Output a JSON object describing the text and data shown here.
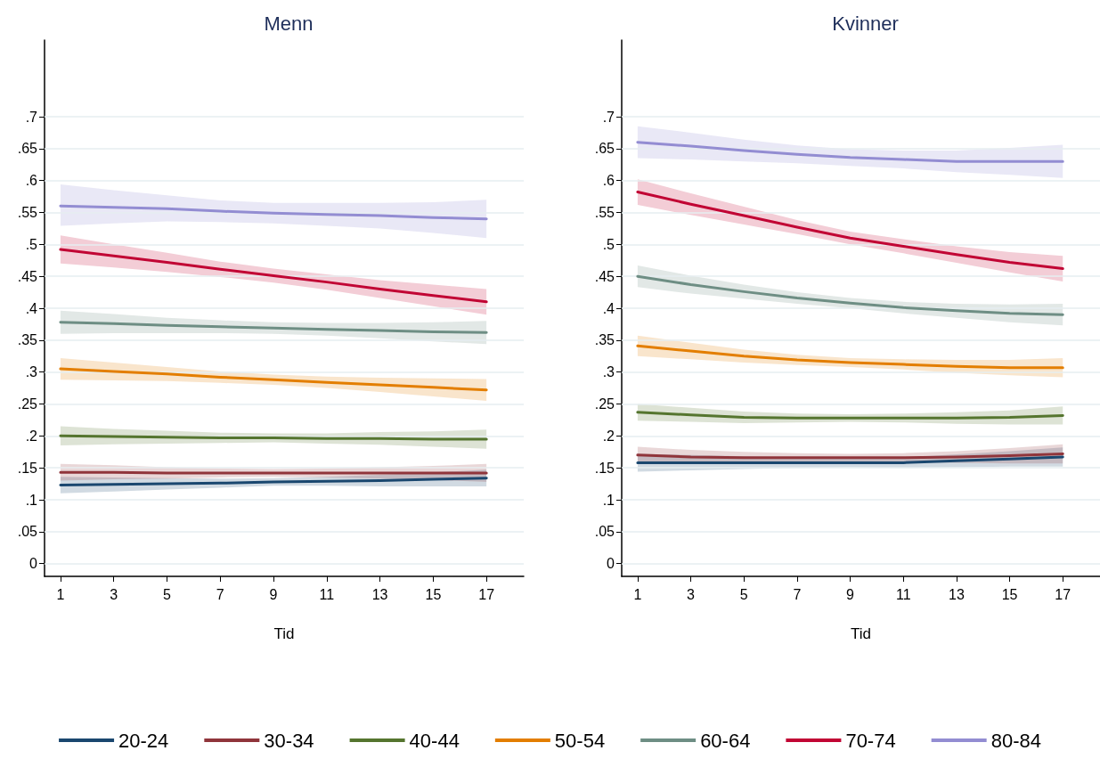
{
  "chart_data": [
    {
      "type": "line",
      "title": "Menn",
      "xlabel": "Tid",
      "x": [
        1,
        3,
        5,
        7,
        9,
        11,
        13,
        15,
        17
      ],
      "xlim": [
        0.4,
        18.4
      ],
      "xticks": [
        1,
        3,
        5,
        7,
        9,
        11,
        13,
        15,
        17
      ],
      "ylim": [
        -0.02,
        0.82
      ],
      "yticks": [
        0,
        {
          "value": 0.05,
          "label": ".05"
        },
        {
          "value": 0.1,
          "label": ".1"
        },
        {
          "value": 0.15,
          "label": ".15"
        },
        {
          "value": 0.2,
          "label": ".2"
        },
        {
          "value": 0.25,
          "label": ".25"
        },
        {
          "value": 0.3,
          "label": ".3"
        },
        {
          "value": 0.35,
          "label": ".35"
        },
        {
          "value": 0.4,
          "label": ".4"
        },
        {
          "value": 0.45,
          "label": ".45"
        },
        {
          "value": 0.5,
          "label": ".5"
        },
        {
          "value": 0.55,
          "label": ".55"
        },
        {
          "value": 0.6,
          "label": ".6"
        },
        {
          "value": 0.65,
          "label": ".65"
        },
        {
          "value": 0.7,
          "label": ".7"
        }
      ],
      "grid": "y",
      "legend": "bottom",
      "marker": "none",
      "line_style": "solid",
      "series": [
        {
          "name": "20-24",
          "color": "#1a476f",
          "values": [
            0.123,
            0.124,
            0.125,
            0.126,
            0.128,
            0.129,
            0.13,
            0.132,
            0.134
          ],
          "lower": [
            0.11,
            0.113,
            0.116,
            0.119,
            0.122,
            0.122,
            0.121,
            0.121,
            0.121
          ],
          "upper": [
            0.136,
            0.135,
            0.134,
            0.133,
            0.134,
            0.136,
            0.139,
            0.143,
            0.147
          ]
        },
        {
          "name": "30-34",
          "color": "#90353b",
          "values": [
            0.143,
            0.143,
            0.142,
            0.142,
            0.142,
            0.142,
            0.142,
            0.142,
            0.142
          ],
          "lower": [
            0.13,
            0.132,
            0.133,
            0.135,
            0.136,
            0.135,
            0.133,
            0.131,
            0.128
          ],
          "upper": [
            0.156,
            0.154,
            0.151,
            0.149,
            0.148,
            0.149,
            0.151,
            0.153,
            0.156
          ]
        },
        {
          "name": "40-44",
          "color": "#55752f",
          "values": [
            0.2,
            0.199,
            0.198,
            0.197,
            0.197,
            0.196,
            0.196,
            0.195,
            0.195
          ],
          "lower": [
            0.185,
            0.187,
            0.188,
            0.189,
            0.19,
            0.188,
            0.186,
            0.183,
            0.18
          ],
          "upper": [
            0.215,
            0.211,
            0.208,
            0.205,
            0.204,
            0.204,
            0.206,
            0.207,
            0.21
          ]
        },
        {
          "name": "50-54",
          "color": "#e37e00",
          "values": [
            0.305,
            0.301,
            0.297,
            0.292,
            0.288,
            0.284,
            0.28,
            0.276,
            0.272
          ],
          "lower": [
            0.288,
            0.287,
            0.286,
            0.283,
            0.28,
            0.275,
            0.269,
            0.262,
            0.255
          ],
          "upper": [
            0.322,
            0.315,
            0.308,
            0.301,
            0.296,
            0.293,
            0.291,
            0.29,
            0.289
          ]
        },
        {
          "name": "60-64",
          "color": "#6e8e84",
          "values": [
            0.378,
            0.376,
            0.373,
            0.371,
            0.369,
            0.367,
            0.365,
            0.363,
            0.362
          ],
          "lower": [
            0.36,
            0.361,
            0.361,
            0.361,
            0.36,
            0.357,
            0.353,
            0.348,
            0.344
          ],
          "upper": [
            0.396,
            0.391,
            0.385,
            0.381,
            0.378,
            0.377,
            0.377,
            0.378,
            0.38
          ]
        },
        {
          "name": "70-74",
          "color": "#c10534",
          "values": [
            0.492,
            0.482,
            0.472,
            0.461,
            0.451,
            0.441,
            0.43,
            0.42,
            0.41
          ],
          "lower": [
            0.47,
            0.464,
            0.457,
            0.449,
            0.44,
            0.429,
            0.416,
            0.403,
            0.39
          ],
          "upper": [
            0.514,
            0.5,
            0.487,
            0.473,
            0.462,
            0.453,
            0.444,
            0.437,
            0.43
          ]
        },
        {
          "name": "80-84",
          "color": "#938dd2",
          "values": [
            0.56,
            0.558,
            0.556,
            0.552,
            0.549,
            0.547,
            0.545,
            0.542,
            0.54
          ],
          "lower": [
            0.529,
            0.533,
            0.536,
            0.535,
            0.533,
            0.529,
            0.525,
            0.518,
            0.51
          ],
          "upper": [
            0.594,
            0.585,
            0.577,
            0.569,
            0.565,
            0.565,
            0.565,
            0.566,
            0.57
          ]
        }
      ]
    },
    {
      "type": "line",
      "title": "Kvinner",
      "xlabel": "Tid",
      "x": [
        1,
        3,
        5,
        7,
        9,
        11,
        13,
        15,
        17
      ],
      "xlim": [
        0.4,
        18.4
      ],
      "xticks": [
        1,
        3,
        5,
        7,
        9,
        11,
        13,
        15,
        17
      ],
      "ylim": [
        -0.02,
        0.82
      ],
      "yticks": [
        0,
        {
          "value": 0.05,
          "label": ".05"
        },
        {
          "value": 0.1,
          "label": ".1"
        },
        {
          "value": 0.15,
          "label": ".15"
        },
        {
          "value": 0.2,
          "label": ".2"
        },
        {
          "value": 0.25,
          "label": ".25"
        },
        {
          "value": 0.3,
          "label": ".3"
        },
        {
          "value": 0.35,
          "label": ".35"
        },
        {
          "value": 0.4,
          "label": ".4"
        },
        {
          "value": 0.45,
          "label": ".45"
        },
        {
          "value": 0.5,
          "label": ".5"
        },
        {
          "value": 0.55,
          "label": ".55"
        },
        {
          "value": 0.6,
          "label": ".6"
        },
        {
          "value": 0.65,
          "label": ".65"
        },
        {
          "value": 0.7,
          "label": ".7"
        }
      ],
      "grid": "y",
      "marker": "none",
      "line_style": "solid",
      "series": [
        {
          "color": "#1a476f",
          "values": [
            0.158,
            0.158,
            0.158,
            0.158,
            0.158,
            0.158,
            0.161,
            0.164,
            0.167
          ],
          "lower": [
            0.144,
            0.146,
            0.148,
            0.15,
            0.151,
            0.15,
            0.151,
            0.152,
            0.152
          ],
          "upper": [
            0.172,
            0.17,
            0.168,
            0.166,
            0.165,
            0.166,
            0.171,
            0.176,
            0.182
          ]
        },
        {
          "color": "#90353b",
          "values": [
            0.17,
            0.167,
            0.166,
            0.166,
            0.166,
            0.166,
            0.167,
            0.169,
            0.172
          ],
          "lower": [
            0.157,
            0.156,
            0.157,
            0.159,
            0.16,
            0.159,
            0.158,
            0.157,
            0.157
          ],
          "upper": [
            0.183,
            0.178,
            0.175,
            0.173,
            0.172,
            0.173,
            0.176,
            0.181,
            0.187
          ]
        },
        {
          "color": "#55752f",
          "values": [
            0.237,
            0.233,
            0.229,
            0.228,
            0.228,
            0.228,
            0.228,
            0.229,
            0.232
          ],
          "lower": [
            0.224,
            0.222,
            0.22,
            0.221,
            0.222,
            0.221,
            0.219,
            0.218,
            0.218
          ],
          "upper": [
            0.25,
            0.244,
            0.238,
            0.235,
            0.234,
            0.235,
            0.237,
            0.24,
            0.246
          ]
        },
        {
          "color": "#e37e00",
          "values": [
            0.341,
            0.333,
            0.325,
            0.319,
            0.315,
            0.312,
            0.309,
            0.307,
            0.307
          ],
          "lower": [
            0.325,
            0.32,
            0.315,
            0.311,
            0.308,
            0.304,
            0.299,
            0.295,
            0.292
          ],
          "upper": [
            0.357,
            0.346,
            0.335,
            0.327,
            0.322,
            0.32,
            0.319,
            0.319,
            0.322
          ]
        },
        {
          "color": "#6e8e84",
          "values": [
            0.45,
            0.437,
            0.426,
            0.416,
            0.408,
            0.401,
            0.396,
            0.392,
            0.39
          ],
          "lower": [
            0.433,
            0.423,
            0.415,
            0.407,
            0.4,
            0.392,
            0.385,
            0.378,
            0.373
          ],
          "upper": [
            0.467,
            0.451,
            0.437,
            0.425,
            0.416,
            0.41,
            0.407,
            0.406,
            0.407
          ]
        },
        {
          "color": "#c10534",
          "values": [
            0.582,
            0.563,
            0.545,
            0.527,
            0.51,
            0.497,
            0.484,
            0.472,
            0.462
          ],
          "lower": [
            0.562,
            0.546,
            0.531,
            0.516,
            0.5,
            0.486,
            0.471,
            0.456,
            0.442
          ],
          "upper": [
            0.602,
            0.58,
            0.559,
            0.538,
            0.52,
            0.508,
            0.497,
            0.488,
            0.482
          ]
        },
        {
          "color": "#938dd2",
          "values": [
            0.66,
            0.654,
            0.647,
            0.641,
            0.636,
            0.633,
            0.63,
            0.63,
            0.63
          ],
          "lower": [
            0.635,
            0.633,
            0.63,
            0.627,
            0.623,
            0.619,
            0.613,
            0.609,
            0.604
          ],
          "upper": [
            0.685,
            0.675,
            0.664,
            0.655,
            0.649,
            0.647,
            0.647,
            0.651,
            0.656
          ]
        }
      ]
    }
  ]
}
